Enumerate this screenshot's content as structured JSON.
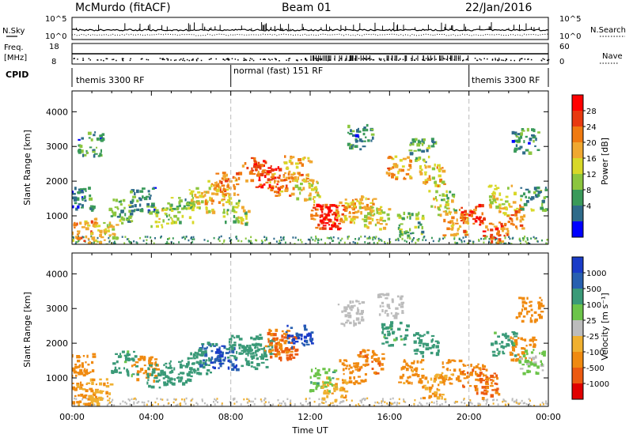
{
  "header": {
    "station": "McMurdo (fitACF)",
    "beam": "Beam 01",
    "date": "22/Jan/2016"
  },
  "status_panel": {
    "nsky_label": "N.Sky",
    "nsearch_label": "N.Search",
    "nsky_ticks": [
      "10^5",
      "10^0"
    ],
    "nsearch_ticks": [
      "10^5",
      "10^0"
    ],
    "freq_label": "Freq.",
    "freq_unit": "[MHz]",
    "freq_ticks": [
      "18",
      "8"
    ],
    "nave_label": "Nave",
    "nave_ticks": [
      "60",
      "0"
    ],
    "cpid_label": "CPID",
    "cpid_segments": [
      {
        "text": "themis 3300 RF",
        "start_hour": 0,
        "end_hour": 8
      },
      {
        "text": "normal (fast) 151 RF",
        "start_hour": 8,
        "end_hour": 20
      },
      {
        "text": "themis 3300 RF",
        "start_hour": 20,
        "end_hour": 24
      }
    ]
  },
  "colorbars": {
    "power": {
      "title": "Power [dB]",
      "ticks": [
        "28",
        "24",
        "20",
        "16",
        "12",
        "8",
        "4"
      ],
      "colors": [
        "#ff0000",
        "#e83a10",
        "#f07a10",
        "#f0a830",
        "#d8d828",
        "#8cc63e",
        "#3a9a5a",
        "#2f6b8a",
        "#0000ff"
      ]
    },
    "velocity": {
      "title": "Velocity [m s⁻¹]",
      "ticks": [
        "1000",
        "500",
        "100",
        "25",
        "-25",
        "-100",
        "-500",
        "-1000"
      ],
      "colors": [
        "#1a3cc8",
        "#2860b0",
        "#3a9a78",
        "#6cc44a",
        "#bcbcbc",
        "#f0b030",
        "#f08a10",
        "#ec5a10",
        "#e00000"
      ]
    }
  },
  "chart_data": [
    {
      "type": "heatmap",
      "name": "power",
      "x_unit": "hours UT",
      "xlim": [
        0,
        24
      ],
      "ylabel": "Slant Range [km]",
      "ylim": [
        180,
        4600
      ],
      "yticks": [
        1000,
        2000,
        3000,
        4000
      ],
      "colorbar_label": "Power [dB]",
      "blobs": [
        {
          "t": 0.9,
          "r": 3100,
          "v": 6
        },
        {
          "t": 0.4,
          "r": 1500,
          "v": 5
        },
        {
          "t": 0.5,
          "r": 600,
          "v": 20
        },
        {
          "t": 1.6,
          "r": 500,
          "v": 14
        },
        {
          "t": 2.5,
          "r": 1150,
          "v": 8
        },
        {
          "t": 3.5,
          "r": 1500,
          "v": 6
        },
        {
          "t": 4.5,
          "r": 1050,
          "v": 12
        },
        {
          "t": 5.5,
          "r": 1200,
          "v": 10
        },
        {
          "t": 6.5,
          "r": 1500,
          "v": 14
        },
        {
          "t": 7.3,
          "r": 1700,
          "v": 18
        },
        {
          "t": 7.8,
          "r": 1950,
          "v": 20
        },
        {
          "t": 8.2,
          "r": 1150,
          "v": 12
        },
        {
          "t": 9.2,
          "r": 2350,
          "v": 22
        },
        {
          "t": 9.8,
          "r": 2150,
          "v": 26
        },
        {
          "t": 10.5,
          "r": 1950,
          "v": 20
        },
        {
          "t": 11.3,
          "r": 2400,
          "v": 18
        },
        {
          "t": 11.8,
          "r": 1800,
          "v": 14
        },
        {
          "t": 12.6,
          "r": 1000,
          "v": 22
        },
        {
          "t": 13.1,
          "r": 1000,
          "v": 28
        },
        {
          "t": 13.8,
          "r": 1150,
          "v": 18
        },
        {
          "t": 14.6,
          "r": 1250,
          "v": 16
        },
        {
          "t": 15.3,
          "r": 950,
          "v": 14
        },
        {
          "t": 16.4,
          "r": 2400,
          "v": 18
        },
        {
          "t": 17.0,
          "r": 800,
          "v": 10
        },
        {
          "t": 18.1,
          "r": 2200,
          "v": 16
        },
        {
          "t": 18.6,
          "r": 1400,
          "v": 12
        },
        {
          "t": 19.3,
          "r": 800,
          "v": 18
        },
        {
          "t": 20.1,
          "r": 1100,
          "v": 24
        },
        {
          "t": 21.3,
          "r": 500,
          "v": 22
        },
        {
          "t": 21.6,
          "r": 1550,
          "v": 14
        },
        {
          "t": 22.1,
          "r": 1000,
          "v": 20
        },
        {
          "t": 23.2,
          "r": 1500,
          "v": 8
        },
        {
          "t": 22.8,
          "r": 3200,
          "v": 6
        },
        {
          "t": 17.6,
          "r": 2900,
          "v": 8
        },
        {
          "t": 14.5,
          "r": 3300,
          "v": 6
        }
      ]
    },
    {
      "type": "heatmap",
      "name": "velocity",
      "x_unit": "hours UT",
      "xlim": [
        0,
        24
      ],
      "xticks": [
        "00:00",
        "04:00",
        "08:00",
        "12:00",
        "16:00",
        "20:00",
        "00:00"
      ],
      "xlabel": "Time UT",
      "ylabel": "Slant Range [km]",
      "ylim": [
        180,
        4600
      ],
      "yticks": [
        1000,
        2000,
        3000,
        4000
      ],
      "colorbar_label": "Velocity [m s⁻¹]",
      "blobs": [
        {
          "t": 0.4,
          "r": 1400,
          "v": -300
        },
        {
          "t": 0.6,
          "r": 550,
          "v": -150
        },
        {
          "t": 1.3,
          "r": 650,
          "v": -80
        },
        {
          "t": 2.6,
          "r": 1450,
          "v": 150
        },
        {
          "t": 3.6,
          "r": 1300,
          "v": -200
        },
        {
          "t": 4.4,
          "r": 1100,
          "v": 200
        },
        {
          "t": 5.4,
          "r": 1200,
          "v": 250
        },
        {
          "t": 6.3,
          "r": 1500,
          "v": 300
        },
        {
          "t": 7.0,
          "r": 1700,
          "v": 600
        },
        {
          "t": 7.6,
          "r": 1600,
          "v": 1000
        },
        {
          "t": 8.4,
          "r": 1900,
          "v": 300
        },
        {
          "t": 9.1,
          "r": 1650,
          "v": 250
        },
        {
          "t": 9.6,
          "r": 1950,
          "v": 300
        },
        {
          "t": 10.3,
          "r": 2100,
          "v": -400
        },
        {
          "t": 10.6,
          "r": 1900,
          "v": -700
        },
        {
          "t": 11.4,
          "r": 2200,
          "v": 1000
        },
        {
          "t": 12.6,
          "r": 1000,
          "v": 80
        },
        {
          "t": 13.2,
          "r": 700,
          "v": -80
        },
        {
          "t": 14.1,
          "r": 1200,
          "v": -300
        },
        {
          "t": 15.0,
          "r": 1500,
          "v": -400
        },
        {
          "t": 16.2,
          "r": 2300,
          "v": 150
        },
        {
          "t": 17.0,
          "r": 1200,
          "v": -150
        },
        {
          "t": 17.8,
          "r": 2000,
          "v": 200
        },
        {
          "t": 18.2,
          "r": 800,
          "v": -100
        },
        {
          "t": 19.1,
          "r": 1200,
          "v": -150
        },
        {
          "t": 20.2,
          "r": 1100,
          "v": -400
        },
        {
          "t": 20.9,
          "r": 800,
          "v": -600
        },
        {
          "t": 21.7,
          "r": 2000,
          "v": 150
        },
        {
          "t": 22.6,
          "r": 1900,
          "v": -300
        },
        {
          "t": 23.1,
          "r": 1500,
          "v": 30
        },
        {
          "t": 14.0,
          "r": 2900,
          "v": 0
        },
        {
          "t": 16.0,
          "r": 3100,
          "v": 0
        },
        {
          "t": 23.0,
          "r": 3000,
          "v": -200
        }
      ]
    }
  ]
}
